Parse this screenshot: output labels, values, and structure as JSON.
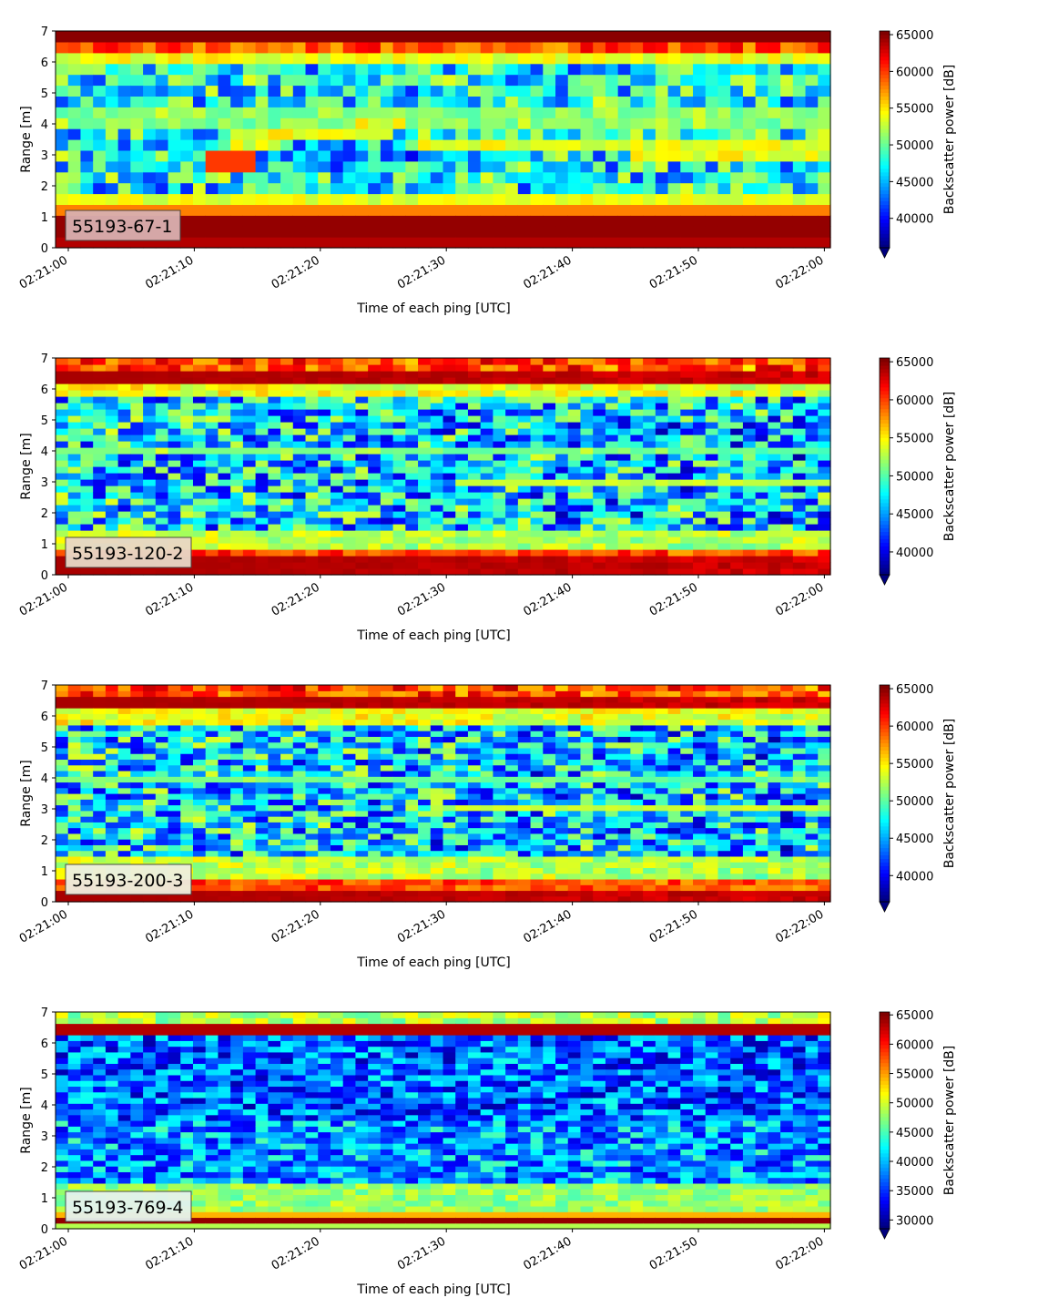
{
  "chart_data": [
    {
      "type": "heatmap",
      "label": "55193-67-1",
      "xlabel": "Time of each ping [UTC]",
      "ylabel": "Range [m]",
      "colorbar_label": "Backscatter power [dB]",
      "colormap": "jet",
      "x_ticks": [
        "02:21:00",
        "02:21:10",
        "02:21:20",
        "02:21:30",
        "02:21:40",
        "02:21:50",
        "02:22:00"
      ],
      "y_ticks": [
        0,
        1,
        2,
        3,
        4,
        5,
        6,
        7
      ],
      "ylim": [
        0,
        7
      ],
      "clim": [
        36000,
        65500
      ],
      "colorbar_ticks": [
        40000,
        45000,
        50000,
        55000,
        60000,
        65000
      ],
      "label_box_color": "#d9b0b0"
    },
    {
      "type": "heatmap",
      "label": "55193-120-2",
      "xlabel": "Time of each ping [UTC]",
      "ylabel": "Range [m]",
      "colorbar_label": "Backscatter power [dB]",
      "colormap": "jet",
      "x_ticks": [
        "02:21:00",
        "02:21:10",
        "02:21:20",
        "02:21:30",
        "02:21:40",
        "02:21:50",
        "02:22:00"
      ],
      "y_ticks": [
        0,
        1,
        2,
        3,
        4,
        5,
        6,
        7
      ],
      "ylim": [
        0,
        7
      ],
      "clim": [
        37000,
        65500
      ],
      "colorbar_ticks": [
        40000,
        45000,
        50000,
        55000,
        60000,
        65000
      ],
      "label_box_color": "#e8d8c8"
    },
    {
      "type": "heatmap",
      "label": "55193-200-3",
      "xlabel": "Time of each ping [UTC]",
      "ylabel": "Range [m]",
      "colorbar_label": "Backscatter power [dB]",
      "colormap": "jet",
      "x_ticks": [
        "02:21:00",
        "02:21:10",
        "02:21:20",
        "02:21:30",
        "02:21:40",
        "02:21:50",
        "02:22:00"
      ],
      "y_ticks": [
        0,
        1,
        2,
        3,
        4,
        5,
        6,
        7
      ],
      "ylim": [
        0,
        7
      ],
      "clim": [
        36500,
        65500
      ],
      "colorbar_ticks": [
        40000,
        45000,
        50000,
        55000,
        60000,
        65000
      ],
      "label_box_color": "#eef0e0"
    },
    {
      "type": "heatmap",
      "label": "55193-769-4",
      "xlabel": "Time of each ping [UTC]",
      "ylabel": "Range [m]",
      "colorbar_label": "Backscatter power [dB]",
      "colormap": "jet",
      "x_ticks": [
        "02:21:00",
        "02:21:10",
        "02:21:20",
        "02:21:30",
        "02:21:40",
        "02:21:50",
        "02:22:00"
      ],
      "y_ticks": [
        0,
        1,
        2,
        3,
        4,
        5,
        6,
        7
      ],
      "ylim": [
        0,
        7
      ],
      "clim": [
        28500,
        65500
      ],
      "colorbar_ticks": [
        30000,
        35000,
        40000,
        45000,
        50000,
        55000,
        60000,
        65000
      ],
      "label_box_color": "#e4f2ee"
    }
  ]
}
